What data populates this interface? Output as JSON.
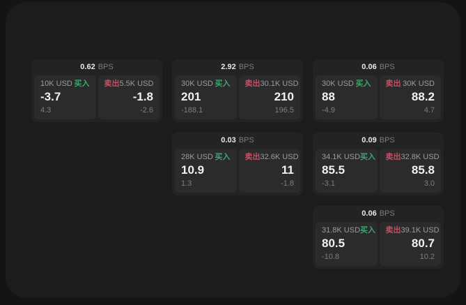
{
  "colors": {
    "page_bg": "#141415",
    "surface_bg": "#1c1c1d",
    "card_bg": "#232324",
    "subpanel_bg": "#2b2b2c",
    "text_primary": "#f1f1f1",
    "text_muted": "#9c9c9c",
    "buy_green": "#3fa56f",
    "sell_red": "#c44e64"
  },
  "labels": {
    "bps_unit": "BPS",
    "buy": "买入",
    "sell": "卖出"
  },
  "cards": [
    {
      "row": 1,
      "col": 1,
      "bps": "0.62",
      "buy": {
        "size": "10K USD",
        "value": "-3.7",
        "delta": "4.3"
      },
      "sell": {
        "size": "5.5K USD",
        "value": "-1.8",
        "delta": "-2.6"
      }
    },
    {
      "row": 1,
      "col": 2,
      "bps": "2.92",
      "buy": {
        "size": "30K USD",
        "value": "201",
        "delta": "-188.1"
      },
      "sell": {
        "size": "30.1K USD",
        "value": "210",
        "delta": "196.5"
      }
    },
    {
      "row": 1,
      "col": 3,
      "bps": "0.06",
      "buy": {
        "size": "30K USD",
        "value": "88",
        "delta": "-4.9"
      },
      "sell": {
        "size": "30K USD",
        "value": "88.2",
        "delta": "4.7"
      }
    },
    {
      "row": 2,
      "col": 2,
      "bps": "0.03",
      "buy": {
        "size": "28K USD",
        "value": "10.9",
        "delta": "1.3"
      },
      "sell": {
        "size": "32.6K USD",
        "value": "11",
        "delta": "-1.8"
      }
    },
    {
      "row": 2,
      "col": 3,
      "bps": "0.09",
      "buy": {
        "size": "34.1K USD",
        "value": "85.5",
        "delta": "-3.1"
      },
      "sell": {
        "size": "32.8K USD",
        "value": "85.8",
        "delta": "3.0"
      }
    },
    {
      "row": 3,
      "col": 3,
      "bps": "0.06",
      "buy": {
        "size": "31.8K USD",
        "value": "80.5",
        "delta": "-10.8"
      },
      "sell": {
        "size": "39.1K USD",
        "value": "80.7",
        "delta": "10.2"
      }
    }
  ]
}
